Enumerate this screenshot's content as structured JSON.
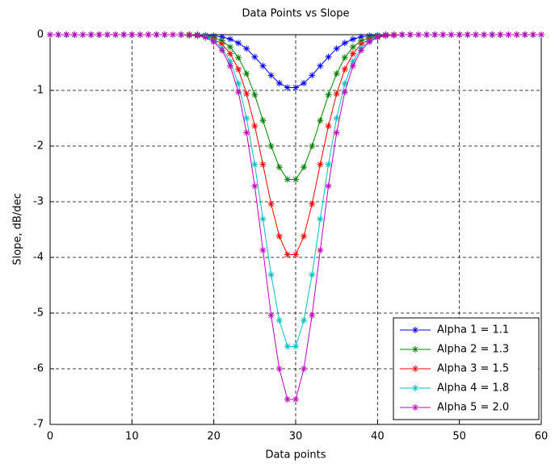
{
  "chart_data": {
    "type": "line",
    "title": "Data Points vs Slope",
    "x_label": "Data points",
    "y_label": "Slope, dB/dec",
    "x": [
      0,
      1,
      2,
      3,
      4,
      5,
      6,
      7,
      8,
      9,
      10,
      11,
      12,
      13,
      14,
      15,
      16,
      17,
      18,
      19,
      20,
      21,
      22,
      23,
      24,
      25,
      26,
      27,
      28,
      29,
      30,
      31,
      32,
      33,
      34,
      35,
      36,
      37,
      38,
      39,
      40,
      41,
      42,
      43,
      44,
      45,
      46,
      47,
      48,
      49,
      50,
      51,
      52,
      53,
      54,
      55,
      56,
      57,
      58,
      59,
      60
    ],
    "series": [
      {
        "name": "Alpha 1 = 1.1",
        "color": "#0000ff",
        "values": [
          0,
          0,
          0,
          0,
          0,
          0,
          0,
          0,
          0,
          0,
          0,
          0,
          0,
          0,
          0,
          0,
          0,
          0,
          0,
          -0.01,
          -0.02,
          -0.04,
          -0.08,
          -0.15,
          -0.25,
          -0.4,
          -0.56,
          -0.73,
          -0.87,
          -0.95,
          -0.95,
          -0.87,
          -0.73,
          -0.56,
          -0.4,
          -0.25,
          -0.15,
          -0.08,
          -0.04,
          -0.02,
          -0.01,
          0,
          0,
          0,
          0,
          0,
          0,
          0,
          0,
          0,
          0,
          0,
          0,
          0,
          0,
          0,
          0,
          0,
          0,
          0,
          0
        ]
      },
      {
        "name": "Alpha 2 = 1.3",
        "color": "#008000",
        "values": [
          0,
          0,
          0,
          0,
          0,
          0,
          0,
          0,
          0,
          0,
          0,
          0,
          0,
          0,
          0,
          0,
          0,
          0,
          -0.01,
          -0.02,
          -0.05,
          -0.11,
          -0.22,
          -0.41,
          -0.7,
          -1.08,
          -1.54,
          -2,
          -2.38,
          -2.6,
          -2.6,
          -2.38,
          -2,
          -1.54,
          -1.08,
          -0.7,
          -0.41,
          -0.22,
          -0.11,
          -0.05,
          -0.02,
          -0.01,
          0,
          0,
          0,
          0,
          0,
          0,
          0,
          0,
          0,
          0,
          0,
          0,
          0,
          0,
          0,
          0,
          0,
          0,
          0
        ]
      },
      {
        "name": "Alpha 3 = 1.5",
        "color": "#ff0000",
        "values": [
          0,
          0,
          0,
          0,
          0,
          0,
          0,
          0,
          0,
          0,
          0,
          0,
          0,
          0,
          0,
          0,
          0,
          0,
          -0.01,
          -0.03,
          -0.08,
          -0.17,
          -0.34,
          -0.62,
          -1.06,
          -1.64,
          -2.33,
          -3.04,
          -3.62,
          -3.95,
          -3.95,
          -3.62,
          -3.04,
          -2.33,
          -1.64,
          -1.06,
          -0.62,
          -0.34,
          -0.17,
          -0.08,
          -0.03,
          -0.01,
          0,
          0,
          0,
          0,
          0,
          0,
          0,
          0,
          0,
          0,
          0,
          0,
          0,
          0,
          0,
          0,
          0,
          0,
          0
        ]
      },
      {
        "name": "Alpha 4 = 1.8",
        "color": "#00bfbf",
        "values": [
          0,
          0,
          0,
          0,
          0,
          0,
          0,
          0,
          0,
          0,
          0,
          0,
          0,
          0,
          0,
          0,
          0,
          -0.01,
          -0.02,
          -0.04,
          -0.11,
          -0.24,
          -0.48,
          -0.88,
          -1.5,
          -2.33,
          -3.31,
          -4.31,
          -5.13,
          -5.6,
          -5.6,
          -5.13,
          -4.31,
          -3.31,
          -2.33,
          -1.5,
          -0.88,
          -0.48,
          -0.24,
          -0.11,
          -0.04,
          -0.02,
          -0.01,
          0,
          0,
          0,
          0,
          0,
          0,
          0,
          0,
          0,
          0,
          0,
          0,
          0,
          0,
          0,
          0,
          0,
          0
        ]
      },
      {
        "name": "Alpha 5 = 2.0",
        "color": "#bf00bf",
        "values": [
          0,
          0,
          0,
          0,
          0,
          0,
          0,
          0,
          0,
          0,
          0,
          0,
          0,
          0,
          0,
          0,
          0,
          -0.01,
          -0.02,
          -0.05,
          -0.13,
          -0.28,
          -0.56,
          -1.03,
          -1.76,
          -2.72,
          -3.87,
          -5.04,
          -6,
          -6.55,
          -6.55,
          -6,
          -5.04,
          -3.87,
          -2.72,
          -1.76,
          -1.03,
          -0.56,
          -0.28,
          -0.13,
          -0.05,
          -0.02,
          -0.01,
          0,
          0,
          0,
          0,
          0,
          0,
          0,
          0,
          0,
          0,
          0,
          0,
          0,
          0,
          0,
          0,
          0,
          0
        ]
      }
    ],
    "xlim": [
      0,
      60
    ],
    "xticks": [
      0,
      10,
      20,
      30,
      40,
      50,
      60
    ],
    "ylim": [
      -7,
      0
    ],
    "yticks": [
      -7,
      -6,
      -5,
      -4,
      -3,
      -2,
      -1,
      0
    ],
    "grid": true,
    "legend": "lower right"
  }
}
